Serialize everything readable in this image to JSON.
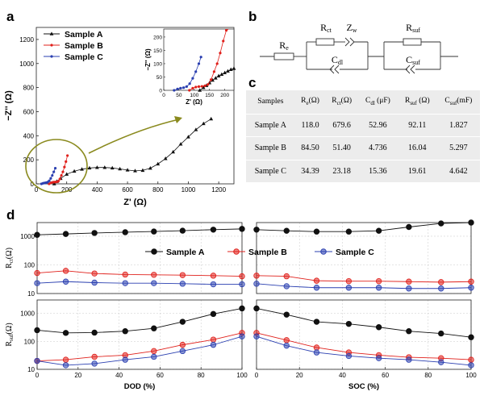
{
  "panel_labels": [
    "a",
    "b",
    "c",
    "d"
  ],
  "legend_a": [
    "Sample A",
    "Sample B",
    "Sample C"
  ],
  "legend_d": [
    "Sample A",
    "Sample B",
    "Sample C"
  ],
  "colors": {
    "A": "#111111",
    "B": "#e0201b",
    "C": "#2a3fb0",
    "olive": "#8a8a1e",
    "grid": "#c8c8c8"
  },
  "circuit": {
    "Re": "R",
    "Re_sub": "e",
    "Rct": "R",
    "Rct_sub": "ct",
    "Zw": "Z",
    "Zw_sub": "w",
    "Cdl": "C",
    "Cdl_sub": "dl",
    "Rsuf": "R",
    "Rsuf_sub": "suf",
    "Csuf": "C",
    "Csuf_sub": "suf"
  },
  "table": {
    "headers": [
      {
        "main": "Samples",
        "sub": "",
        "unit": ""
      },
      {
        "main": "R",
        "sub": "e",
        "unit": "(Ω)"
      },
      {
        "main": "R",
        "sub": "ct",
        "unit": "(Ω)"
      },
      {
        "main": "C",
        "sub": "dl",
        "unit": " (μF)"
      },
      {
        "main": "R",
        "sub": "suf",
        "unit": " (Ω)"
      },
      {
        "main": "C",
        "sub": "suf",
        "unit": "(mF)"
      }
    ],
    "rows": [
      [
        "Sample A",
        "118.0",
        "679.6",
        "52.96",
        "92.11",
        "1.827"
      ],
      [
        "Sample B",
        "84.50",
        "51.40",
        "4.736",
        "16.04",
        "5.297"
      ],
      [
        "Sample C",
        "34.39",
        "23.18",
        "15.36",
        "19.61",
        "4.642"
      ]
    ]
  },
  "chart_data": [
    {
      "id": "nyquist-main",
      "type": "scatter",
      "xlabel": "Z' (Ω)",
      "ylabel": "−Z'' (Ω)",
      "xlim": [
        0,
        1300
      ],
      "ylim": [
        0,
        1300
      ],
      "xticks": [
        0,
        200,
        400,
        600,
        800,
        1000,
        1200
      ],
      "yticks": [
        0,
        200,
        400,
        600,
        800,
        1000,
        1200
      ],
      "series": [
        {
          "name": "Sample A",
          "x": [
            118,
            135,
            160,
            200,
            250,
            300,
            350,
            400,
            450,
            500,
            550,
            600,
            650,
            700,
            750,
            800,
            850,
            900,
            950,
            1000,
            1050,
            1100,
            1150
          ],
          "y": [
            0,
            20,
            45,
            80,
            105,
            122,
            132,
            136,
            136,
            132,
            124,
            115,
            108,
            112,
            130,
            165,
            210,
            265,
            330,
            390,
            450,
            500,
            540
          ]
        },
        {
          "name": "Sample B",
          "x": [
            84,
            95,
            105,
            115,
            125,
            135,
            145,
            155,
            165,
            175,
            185,
            195,
            205
          ],
          "y": [
            0,
            8,
            12,
            14,
            15,
            17,
            22,
            40,
            70,
            100,
            140,
            185,
            235
          ]
        },
        {
          "name": "Sample C",
          "x": [
            34,
            45,
            55,
            65,
            75,
            85,
            95,
            105,
            115,
            125
          ],
          "y": [
            0,
            5,
            8,
            10,
            14,
            25,
            45,
            70,
            100,
            130
          ]
        }
      ]
    },
    {
      "id": "nyquist-inset",
      "type": "scatter",
      "xlabel": "Z' (Ω)",
      "ylabel": "−Z'' (Ω)",
      "xlim": [
        0,
        230
      ],
      "ylim": [
        0,
        230
      ],
      "xticks": [
        0,
        50,
        100,
        150,
        200
      ],
      "yticks": [
        0,
        50,
        100,
        150,
        200
      ],
      "series": [
        {
          "name": "Sample A",
          "x": [
            118,
            130,
            140,
            150,
            160,
            170,
            180,
            190,
            200,
            210,
            220,
            230
          ],
          "y": [
            0,
            10,
            18,
            28,
            38,
            46,
            54,
            60,
            66,
            72,
            78,
            82
          ]
        },
        {
          "name": "Sample B",
          "x": [
            84,
            95,
            105,
            115,
            125,
            135,
            145,
            155,
            165,
            175,
            185,
            195,
            205,
            212
          ],
          "y": [
            0,
            8,
            12,
            14,
            15,
            17,
            22,
            40,
            70,
            100,
            140,
            185,
            225,
            232
          ]
        },
        {
          "name": "Sample C",
          "x": [
            34,
            45,
            55,
            65,
            75,
            85,
            95,
            105,
            115,
            122
          ],
          "y": [
            0,
            5,
            8,
            10,
            14,
            25,
            45,
            70,
            100,
            125
          ]
        }
      ]
    },
    {
      "id": "rct-dod",
      "type": "line",
      "ylabel_main": "R",
      "ylabel_sub": "ct",
      "ylabel_unit": "(Ω)",
      "xlim": [
        0,
        100
      ],
      "ylog": true,
      "ylim": [
        10,
        3000
      ],
      "xticks": [],
      "yticks": [
        10,
        100,
        1000
      ],
      "series": [
        {
          "name": "Sample A",
          "x": [
            0,
            14,
            28,
            43,
            57,
            71,
            86,
            100
          ],
          "y": [
            1120,
            1200,
            1300,
            1380,
            1460,
            1560,
            1700,
            1800
          ]
        },
        {
          "name": "Sample B",
          "x": [
            0,
            14,
            28,
            43,
            57,
            71,
            86,
            100
          ],
          "y": [
            52,
            62,
            50,
            46,
            45,
            44,
            42,
            40
          ]
        },
        {
          "name": "Sample C",
          "x": [
            0,
            14,
            28,
            43,
            57,
            71,
            86,
            100
          ],
          "y": [
            23,
            26,
            24,
            23,
            23,
            22,
            21,
            21
          ]
        }
      ]
    },
    {
      "id": "rct-soc",
      "type": "line",
      "xlim": [
        0,
        100
      ],
      "ylog": true,
      "ylim": [
        10,
        3000
      ],
      "xticks": [],
      "yticks": [],
      "series": [
        {
          "name": "Sample A",
          "x": [
            0,
            14,
            28,
            43,
            57,
            71,
            86,
            100
          ],
          "y": [
            1700,
            1550,
            1450,
            1450,
            1550,
            2100,
            2800,
            3000
          ]
        },
        {
          "name": "Sample B",
          "x": [
            0,
            14,
            28,
            43,
            57,
            71,
            86,
            100
          ],
          "y": [
            42,
            40,
            28,
            27,
            27,
            26,
            25,
            26
          ]
        },
        {
          "name": "Sample C",
          "x": [
            0,
            14,
            28,
            43,
            57,
            71,
            86,
            100
          ],
          "y": [
            22,
            18,
            16,
            16,
            16,
            15,
            15,
            16
          ]
        }
      ]
    },
    {
      "id": "rsuf-dod",
      "type": "line",
      "xlabel": "DOD (%)",
      "ylabel_main": "R",
      "ylabel_sub": "suf",
      "ylabel_unit": "(Ω)",
      "xlim": [
        0,
        100
      ],
      "ylog": true,
      "ylim": [
        10,
        3000
      ],
      "xticks": [
        0,
        20,
        40,
        60,
        80,
        100
      ],
      "yticks": [
        10,
        100,
        1000
      ],
      "series": [
        {
          "name": "Sample A",
          "x": [
            0,
            14,
            28,
            43,
            57,
            71,
            86,
            100
          ],
          "y": [
            250,
            200,
            205,
            230,
            290,
            500,
            950,
            1500
          ]
        },
        {
          "name": "Sample B",
          "x": [
            0,
            14,
            28,
            43,
            57,
            71,
            86,
            100
          ],
          "y": [
            20,
            22,
            28,
            32,
            45,
            75,
            115,
            200
          ]
        },
        {
          "name": "Sample C",
          "x": [
            0,
            14,
            28,
            43,
            57,
            71,
            86,
            100
          ],
          "y": [
            20,
            14,
            16,
            22,
            28,
            45,
            75,
            150
          ]
        }
      ]
    },
    {
      "id": "rsuf-soc",
      "type": "line",
      "xlabel": "SOC (%)",
      "xlim": [
        0,
        100
      ],
      "ylog": true,
      "ylim": [
        10,
        3000
      ],
      "xticks": [
        0,
        20,
        40,
        60,
        80,
        100
      ],
      "yticks": [],
      "series": [
        {
          "name": "Sample A",
          "x": [
            0,
            14,
            28,
            43,
            57,
            71,
            86,
            100
          ],
          "y": [
            1500,
            900,
            500,
            420,
            320,
            230,
            190,
            140
          ]
        },
        {
          "name": "Sample B",
          "x": [
            0,
            14,
            28,
            43,
            57,
            71,
            86,
            100
          ],
          "y": [
            200,
            110,
            60,
            40,
            32,
            27,
            25,
            22
          ]
        },
        {
          "name": "Sample C",
          "x": [
            0,
            14,
            28,
            43,
            57,
            71,
            86,
            100
          ],
          "y": [
            150,
            70,
            40,
            30,
            25,
            22,
            18,
            14
          ]
        }
      ]
    }
  ]
}
